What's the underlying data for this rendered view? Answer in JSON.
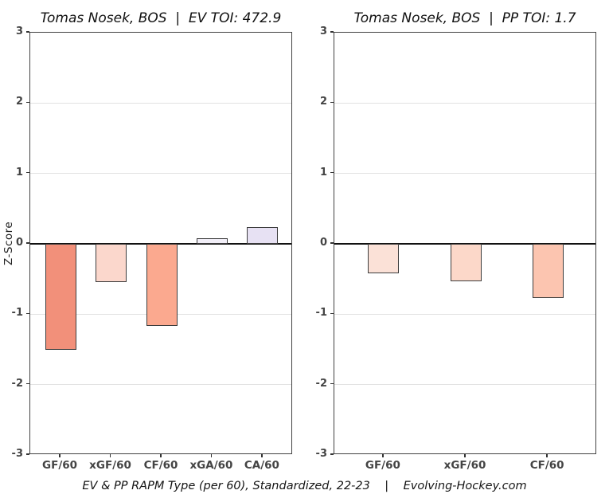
{
  "caption": "EV & PP RAPM Type (per 60), Standardized, 22-23    |    Evolving-Hockey.com",
  "colors": {
    "bar_border": "#3d3d3d",
    "panel_border": "#424242",
    "gridline": "#e2e2e2",
    "zero_line": "#111111",
    "axis_text": "#444444",
    "title_text": "#111111",
    "background": "#ffffff"
  },
  "chart_data": [
    {
      "type": "bar",
      "title": "Tomas Nosek, BOS  |  EV TOI: 472.9",
      "xlabel": "",
      "ylabel": "Z-Score",
      "ylim": [
        -3,
        3
      ],
      "yticks": [
        3,
        2,
        1,
        0,
        -1,
        -2,
        -3
      ],
      "grid": true,
      "legend": "none",
      "categories": [
        "GF/60",
        "xGF/60",
        "CF/60",
        "xGA/60",
        "CA/60"
      ],
      "values": [
        -1.5,
        -0.54,
        -1.17,
        0.08,
        0.24
      ],
      "bar_colors": [
        "#f2907a",
        "#fbd7cc",
        "#fba98f",
        "#f2eff8",
        "#e7e1f3"
      ]
    },
    {
      "type": "bar",
      "title": "Tomas Nosek, BOS  |  PP TOI: 1.7",
      "xlabel": "",
      "ylabel": "",
      "ylim": [
        -3,
        3
      ],
      "yticks": [
        3,
        2,
        1,
        0,
        -1,
        -2,
        -3
      ],
      "grid": true,
      "legend": "none",
      "categories": [
        "GF/60",
        "xGF/60",
        "CF/60"
      ],
      "values": [
        -0.42,
        -0.53,
        -0.77
      ],
      "bar_colors": [
        "#fbe1d7",
        "#fcd8c9",
        "#fcc5b0"
      ]
    }
  ]
}
